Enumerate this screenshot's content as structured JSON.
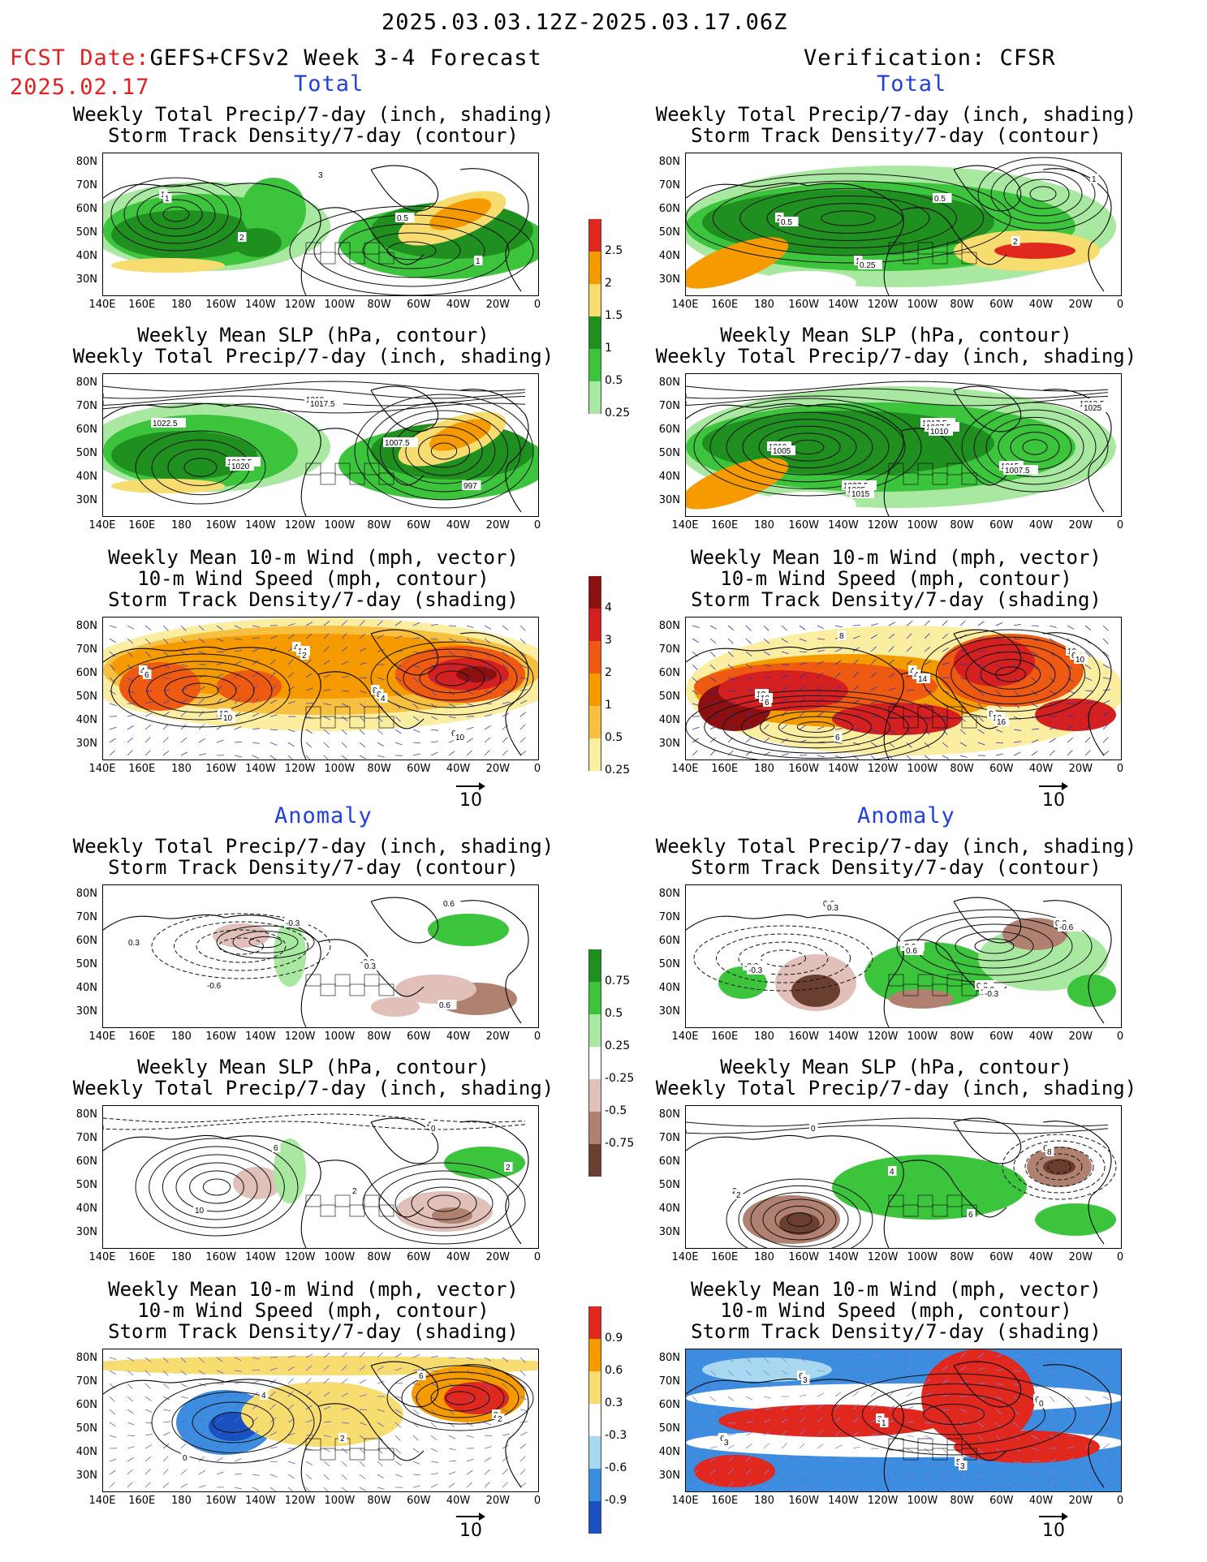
{
  "header": {
    "date_range": "2025.03.03.12Z-2025.03.17.06Z",
    "fcst_label": "FCST Date:",
    "fcst_model": "GEFS+CFSv2 Week 3-4 Forecast",
    "fcst_date": "2025.02.17",
    "verification": "Verification: CFSR"
  },
  "sections": {
    "total": "Total",
    "anomaly": "Anomaly"
  },
  "panel_titles": {
    "precip_storm": "Weekly Total Precip/7-day (inch, shading)\nStorm Track Density/7-day (contour)",
    "slp_precip": "Weekly Mean SLP (hPa, contour)\nWeekly Total Precip/7-day (inch, shading)",
    "wind_storm": "Weekly Mean 10-m Wind (mph, vector)\n10-m Wind Speed (mph, contour)\nStorm Track Density/7-day (shading)"
  },
  "axes": {
    "lat_ticks": [
      "80N",
      "70N",
      "60N",
      "50N",
      "40N",
      "30N"
    ],
    "lon_ticks": [
      "140E",
      "160E",
      "180",
      "160W",
      "140W",
      "120W",
      "100W",
      "80W",
      "60W",
      "40W",
      "20W",
      "0"
    ]
  },
  "vector_reference": "10",
  "colorbars": {
    "total_precip": {
      "labels": [
        "2.5",
        "2",
        "1.5",
        "1",
        "0.5",
        "0.25"
      ],
      "colors": [
        "#e0281e",
        "#f59b00",
        "#f7dc6f",
        "#1f8f1f",
        "#3cc43c",
        "#a8e8a0"
      ]
    },
    "total_storm": {
      "labels": [
        "4",
        "3",
        "2",
        "1",
        "0.5",
        "0.25"
      ],
      "colors": [
        "#8c1010",
        "#d42020",
        "#ee5a12",
        "#f59b00",
        "#f7c040",
        "#fbeea0"
      ]
    },
    "anom_precip": {
      "labels": [
        "0.75",
        "0.5",
        "0.25",
        "-0.25",
        "-0.5",
        "-0.75"
      ],
      "colors": [
        "#1f8f1f",
        "#3cc43c",
        "#a8e8a0",
        "#ffffff",
        "#e0c0b8",
        "#b08070",
        "#6a3f30"
      ]
    },
    "anom_storm": {
      "labels": [
        "0.9",
        "0.6",
        "0.3",
        "-0.3",
        "-0.6",
        "-0.9"
      ],
      "colors": [
        "#e0281e",
        "#f59b00",
        "#f7dc6f",
        "#ffffff",
        "#a8d8f0",
        "#3c8ce0",
        "#1a50c0"
      ]
    }
  },
  "contour_labels": {
    "t_left_1": [
      "1",
      "2",
      "3",
      "0.5",
      "1",
      "1"
    ],
    "t_right_1": [
      "2",
      "1",
      "0.5",
      "2",
      "1",
      "0.5",
      "0.25"
    ],
    "t_left_2": [
      "1017.5",
      "1010",
      "1007.5",
      "997",
      "1022.5",
      "1020",
      "1017.5"
    ],
    "t_right_2": [
      "1027.5",
      "1017.5",
      "1015",
      "1012.5",
      "1010",
      "1005",
      "1007.5",
      "1007.5",
      "1025",
      "1005",
      "1015",
      "1010"
    ],
    "t_left_3": [
      "4",
      "8",
      "6",
      "4",
      "12",
      "14",
      "8",
      "10",
      "6",
      "10",
      "2",
      "4"
    ],
    "t_right_3": [
      "4",
      "8",
      "10",
      "12",
      "6",
      "4",
      "10",
      "6",
      "10",
      "8",
      "14",
      "16",
      "10",
      "6"
    ],
    "a_left_1": [
      "-0.3",
      "0.6",
      "0.3",
      "-0.6",
      "-0.3",
      "0.3",
      "0.6"
    ],
    "a_right_1": [
      "0.9",
      "0.3",
      "-0.3",
      "0.6",
      "-0.6",
      "-0.9",
      "-0.6",
      "-0.3",
      "0.3",
      "0.6",
      "-0.3"
    ],
    "a_left_2": [
      "4",
      "2",
      "10",
      "6",
      "2",
      "0"
    ],
    "a_right_2": [
      "6",
      "2",
      "0",
      "4",
      "6",
      "8",
      "2"
    ],
    "a_left_3": [
      "2",
      "0",
      "4",
      "2",
      "6",
      "2"
    ],
    "a_right_3": [
      "6",
      "6",
      "3",
      "5",
      "6",
      "3",
      "3",
      "1",
      "3",
      "0"
    ]
  }
}
